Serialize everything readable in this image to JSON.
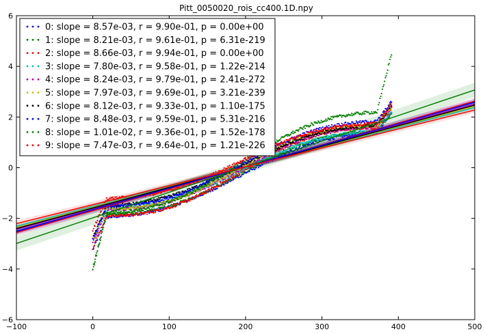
{
  "chart_data": {
    "type": "scatter",
    "title": "Pitt_0050020_rois_cc400.1D.npy",
    "xlabel": "",
    "ylabel": "",
    "xlim": [
      -100,
      500
    ],
    "ylim": [
      -6,
      6
    ],
    "xticks": [
      "−100",
      "0",
      "100",
      "200",
      "300",
      "400",
      "500"
    ],
    "yticks": [
      "−6",
      "−4",
      "−2",
      "0",
      "2",
      "4",
      "6"
    ],
    "grid": false,
    "legend_position": "top-left",
    "series": [
      {
        "name": "0: slope = 8.57e-03, r = 9.90e-01, p = 0.00e+00",
        "color": "#0000ff",
        "slope": 0.00857,
        "intercept": -1.68,
        "n": 392
      },
      {
        "name": "1: slope = 8.21e-03, r = 9.61e-01, p = 6.31e-219",
        "color": "#008000",
        "slope": 0.00821,
        "intercept": -1.61,
        "n": 392
      },
      {
        "name": "2: slope = 8.66e-03, r = 9.94e-01, p = 0.00e+00",
        "color": "#ff0000",
        "slope": 0.00866,
        "intercept": -1.7,
        "n": 392
      },
      {
        "name": "3: slope = 7.80e-03, r = 9.58e-01, p = 1.22e-214",
        "color": "#00bfbf",
        "slope": 0.0078,
        "intercept": -1.53,
        "n": 392
      },
      {
        "name": "4: slope = 8.24e-03, r = 9.79e-01, p = 2.41e-272",
        "color": "#bf00bf",
        "slope": 0.00824,
        "intercept": -1.61,
        "n": 392
      },
      {
        "name": "5: slope = 7.97e-03, r = 9.69e-01, p = 3.21e-239",
        "color": "#bfbf00",
        "slope": 0.00797,
        "intercept": -1.56,
        "n": 392
      },
      {
        "name": "6: slope = 8.12e-03, r = 9.33e-01, p = 1.10e-175",
        "color": "#000000",
        "slope": 0.00812,
        "intercept": -1.59,
        "n": 392
      },
      {
        "name": "7: slope = 8.48e-03, r = 9.59e-01, p = 5.31e-216",
        "color": "#0000ff",
        "slope": 0.00848,
        "intercept": -1.66,
        "n": 392
      },
      {
        "name": "8: slope = 1.01e-02, r = 9.36e-01, p = 1.52e-178",
        "color": "#008000",
        "slope": 0.0101,
        "intercept": -1.98,
        "n": 392
      },
      {
        "name": "9: slope = 7.47e-03, r = 9.64e-01, p = 1.21e-226",
        "color": "#ff0000",
        "slope": 0.00747,
        "intercept": -1.46,
        "n": 392
      }
    ]
  }
}
